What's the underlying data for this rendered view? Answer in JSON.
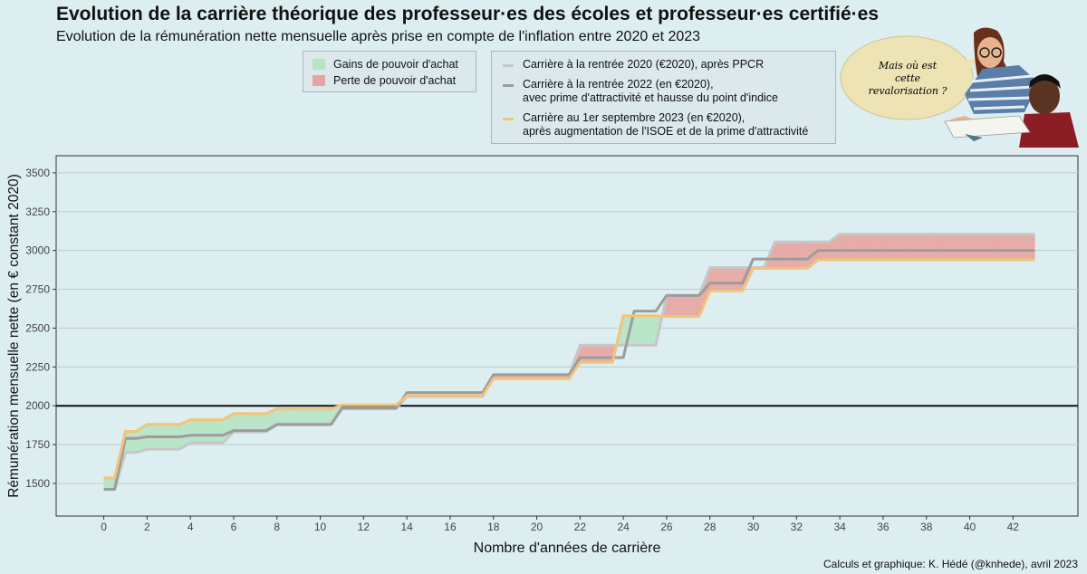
{
  "header": {
    "title": "Evolution de la carrière théorique des professeur·es des écoles et professeur·es certifié·es",
    "subtitle": "Evolution de la rémunération nette mensuelle après prise en compte de l'inflation entre 2020 et 2023"
  },
  "legend_fill": [
    {
      "label": "Gains de pouvoir d'achat",
      "color": "#b7e4c4"
    },
    {
      "label": "Perte de pouvoir d'achat",
      "color": "#e8a5a0"
    }
  ],
  "legend_lines": [
    {
      "line1": "Carrière à la rentrée 2020 (€2020), après PPCR",
      "line2": "",
      "color": "#c7c7c7"
    },
    {
      "line1": "Carrière à la rentrée 2022 (en €2020),",
      "line2": "avec prime d'attractivité et hausse du point d'indice",
      "color": "#9c9c9c"
    },
    {
      "line1": "Carrière au 1er septembre 2023 (en €2020),",
      "line2": "après augmentation de l'ISOE et de la prime d'attractivité",
      "color": "#f3c37a"
    }
  ],
  "speech_bubble": {
    "line1": "Mais où est",
    "line2": "cette",
    "line3": "revalorisation ?"
  },
  "caption": "Calculs et graphique: K. Hédé (@knhede), avril 2023",
  "chart_data": {
    "type": "line",
    "xlabel": "Nombre d'années de carrière",
    "ylabel": "Rémunération mensuelle nette (en € constant 2020)",
    "xlim": [
      -2.2,
      45
    ],
    "ylim": [
      1290,
      3610
    ],
    "xticks": [
      0,
      2,
      4,
      6,
      8,
      10,
      12,
      14,
      16,
      18,
      20,
      22,
      24,
      26,
      28,
      30,
      32,
      34,
      36,
      38,
      40,
      42
    ],
    "yticks": [
      1500,
      1750,
      2000,
      2250,
      2500,
      2750,
      3000,
      3250,
      3500
    ],
    "reference_line": 2000,
    "grid": true,
    "series": [
      {
        "name": "Carrière à la rentrée 2020 (€2020), après PPCR",
        "color": "#c7c7c7",
        "points": [
          [
            0,
            1460
          ],
          [
            0.5,
            1460
          ],
          [
            1,
            1700
          ],
          [
            1.5,
            1700
          ],
          [
            2,
            1720
          ],
          [
            3.5,
            1720
          ],
          [
            4,
            1762
          ],
          [
            5.5,
            1762
          ],
          [
            6,
            1832
          ],
          [
            7.5,
            1832
          ],
          [
            8,
            1878
          ],
          [
            10.5,
            1878
          ],
          [
            11,
            1980
          ],
          [
            13.5,
            1980
          ],
          [
            14,
            2060
          ],
          [
            17.5,
            2060
          ],
          [
            18,
            2200
          ],
          [
            21.5,
            2200
          ],
          [
            22,
            2390
          ],
          [
            25.5,
            2390
          ],
          [
            26,
            2710
          ],
          [
            27.5,
            2710
          ],
          [
            28,
            2890
          ],
          [
            30.5,
            2890
          ],
          [
            31,
            3055
          ],
          [
            33.5,
            3055
          ],
          [
            34,
            3105
          ],
          [
            43,
            3105
          ]
        ]
      },
      {
        "name": "Carrière à la rentrée 2022 (en €2020), avec prime d'attractivité et hausse du point d'indice",
        "color": "#9c9c9c",
        "points": [
          [
            0,
            1462
          ],
          [
            0.5,
            1462
          ],
          [
            1,
            1790
          ],
          [
            1.5,
            1790
          ],
          [
            2,
            1800
          ],
          [
            3.5,
            1800
          ],
          [
            4,
            1810
          ],
          [
            5.5,
            1810
          ],
          [
            6,
            1840
          ],
          [
            7.5,
            1840
          ],
          [
            8,
            1880
          ],
          [
            10.5,
            1880
          ],
          [
            11,
            1985
          ],
          [
            13.5,
            1985
          ],
          [
            14,
            2085
          ],
          [
            17.5,
            2085
          ],
          [
            18,
            2200
          ],
          [
            21.5,
            2200
          ],
          [
            22,
            2310
          ],
          [
            23.5,
            2310
          ],
          [
            24,
            2310
          ],
          [
            24.5,
            2610
          ],
          [
            25.5,
            2610
          ],
          [
            26,
            2710
          ],
          [
            27.5,
            2710
          ],
          [
            28,
            2790
          ],
          [
            29.5,
            2790
          ],
          [
            30,
            2945
          ],
          [
            32.5,
            2945
          ],
          [
            33,
            3000
          ],
          [
            43,
            3000
          ]
        ]
      },
      {
        "name": "Carrière au 1er septembre 2023 (en €2020), après augmentation de l'ISOE et de la prime d'attractivité",
        "color": "#f3c37a",
        "points": [
          [
            0,
            1535
          ],
          [
            0.5,
            1535
          ],
          [
            1,
            1835
          ],
          [
            1.5,
            1835
          ],
          [
            2,
            1880
          ],
          [
            3.5,
            1880
          ],
          [
            4,
            1910
          ],
          [
            5.5,
            1910
          ],
          [
            6,
            1950
          ],
          [
            7.5,
            1950
          ],
          [
            8,
            1980
          ],
          [
            10.5,
            1980
          ],
          [
            11,
            2005
          ],
          [
            13.5,
            2005
          ],
          [
            14,
            2065
          ],
          [
            17.5,
            2065
          ],
          [
            18,
            2175
          ],
          [
            21.5,
            2175
          ],
          [
            22,
            2280
          ],
          [
            23.5,
            2280
          ],
          [
            24,
            2580
          ],
          [
            25.5,
            2580
          ],
          [
            26,
            2575
          ],
          [
            27.5,
            2575
          ],
          [
            28,
            2740
          ],
          [
            29.5,
            2740
          ],
          [
            30,
            2885
          ],
          [
            32.5,
            2885
          ],
          [
            33,
            2940
          ],
          [
            43,
            2940
          ]
        ]
      }
    ]
  }
}
